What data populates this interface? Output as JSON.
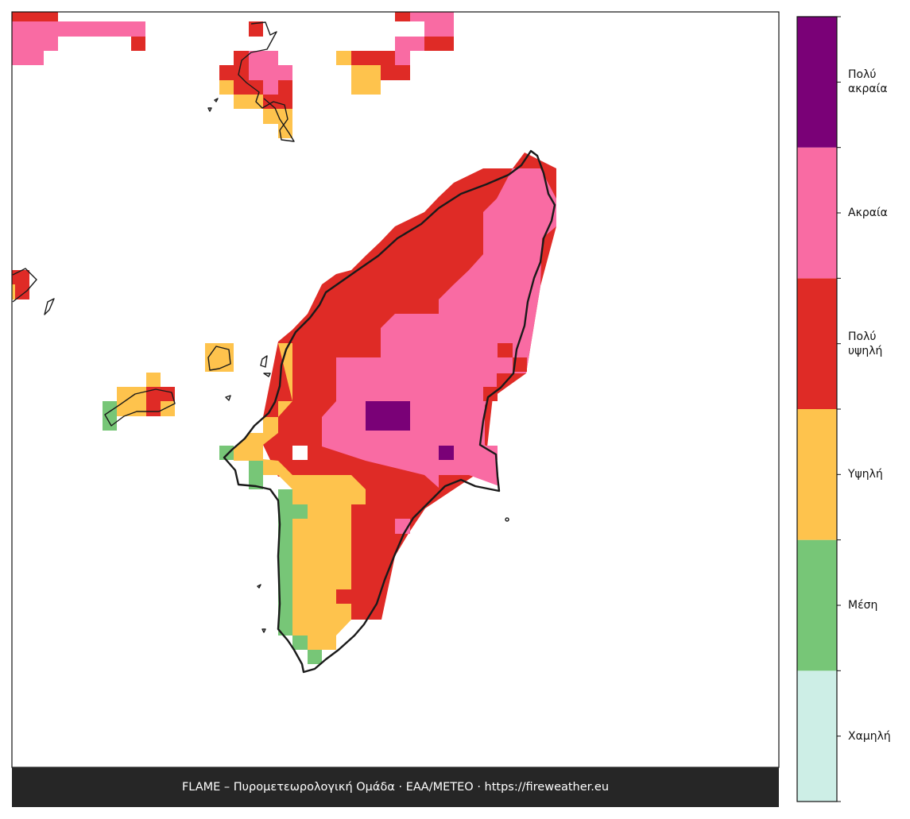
{
  "legend": {
    "labels": [
      "Χαμηλή",
      "Μέση",
      "Υψηλή",
      "Πολύ υψηλή",
      "Ακραία",
      "Πολύ ακραία"
    ],
    "colors": [
      "#cdeee6",
      "#77c677",
      "#fec34d",
      "#df2b26",
      "#f96ba3",
      "#7a0177"
    ]
  },
  "footer": {
    "text": "FLAME – Πυρομετεωρολογική Ομάδα · ΕΑΑ/METEO · https://fireweather.eu"
  }
}
